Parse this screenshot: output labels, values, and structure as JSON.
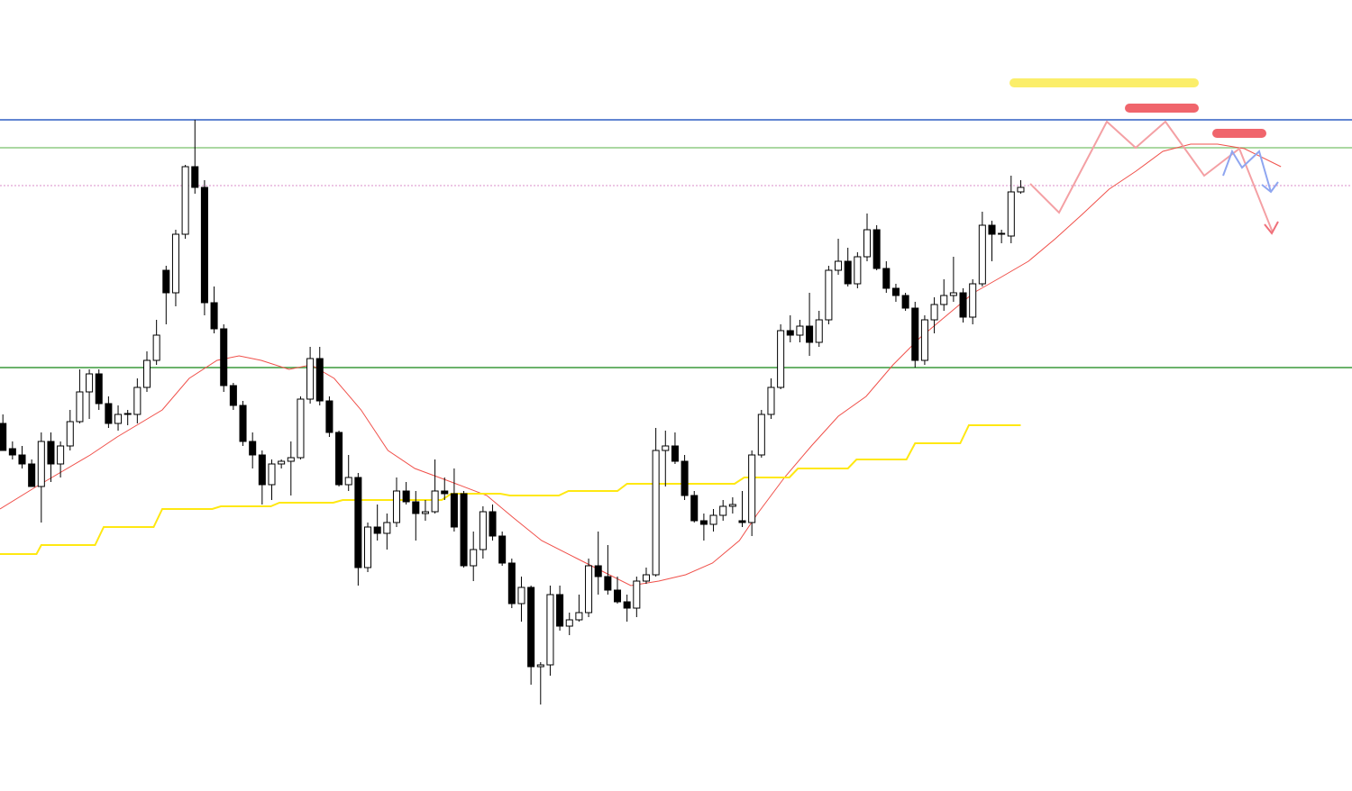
{
  "chart_data": {
    "type": "candlestick",
    "x": [
      0,
      1,
      2,
      3,
      4,
      5,
      6,
      7,
      8,
      9,
      10,
      11,
      12,
      13,
      14,
      15,
      16,
      17,
      18,
      19,
      20,
      21,
      22,
      23,
      24,
      25,
      26,
      27,
      28,
      29,
      30,
      31,
      32,
      33,
      34,
      35,
      36,
      37,
      38,
      39,
      40,
      41,
      42,
      43,
      44,
      45,
      46,
      47,
      48,
      49,
      50,
      51,
      52,
      53,
      54,
      55,
      56,
      57,
      58,
      59,
      60,
      61,
      62,
      63,
      64,
      65,
      66,
      67,
      68,
      69,
      70,
      71,
      72,
      73,
      74,
      75,
      76,
      77,
      78,
      79,
      80,
      81,
      82,
      83,
      84,
      85,
      86,
      87,
      88,
      89,
      90,
      91,
      92,
      93,
      94,
      95,
      96,
      97,
      98,
      99,
      100,
      101,
      102,
      103,
      104,
      105,
      106
    ],
    "open": [
      530,
      502,
      495,
      485,
      460,
      510,
      485,
      505,
      532,
      565,
      585,
      552,
      530,
      540,
      540,
      570,
      600,
      700,
      675,
      740,
      815,
      792,
      664,
      635,
      572,
      550,
      510,
      495,
      462,
      485,
      488,
      492,
      557,
      602,
      555,
      520,
      462,
      470,
      370,
      415,
      408,
      420,
      455,
      443,
      430,
      432,
      455,
      452,
      452,
      372,
      390,
      432,
      405,
      375,
      330,
      348,
      260,
      262,
      340,
      305,
      312,
      320,
      372,
      360,
      345,
      332,
      325,
      355,
      362,
      500,
      505,
      488,
      450,
      422,
      418,
      428,
      438,
      422,
      420,
      495,
      540,
      570,
      633,
      628,
      638,
      620,
      645,
      700,
      710,
      685,
      715,
      745,
      702,
      680,
      672,
      658,
      600,
      645,
      662,
      672,
      675,
      648,
      685,
      750,
      740,
      738,
      787
    ],
    "high": [
      540,
      510,
      505,
      490,
      520,
      520,
      510,
      545,
      590,
      590,
      590,
      560,
      550,
      545,
      580,
      610,
      645,
      705,
      745,
      817,
      867,
      800,
      682,
      640,
      575,
      555,
      520,
      500,
      490,
      490,
      510,
      560,
      615,
      615,
      560,
      522,
      495,
      475,
      420,
      440,
      430,
      470,
      465,
      455,
      445,
      490,
      470,
      480,
      455,
      410,
      438,
      440,
      410,
      380,
      360,
      350,
      265,
      350,
      350,
      320,
      340,
      380,
      410,
      395,
      360,
      340,
      360,
      370,
      525,
      522,
      520,
      495,
      455,
      430,
      435,
      445,
      448,
      455,
      500,
      545,
      580,
      640,
      650,
      645,
      675,
      655,
      705,
      735,
      725,
      720,
      763,
      750,
      710,
      685,
      675,
      665,
      650,
      670,
      690,
      715,
      680,
      690,
      765,
      755,
      745,
      805,
      800
    ],
    "low": [
      500,
      490,
      480,
      460,
      420,
      465,
      470,
      500,
      530,
      535,
      545,
      525,
      522,
      528,
      530,
      565,
      595,
      640,
      660,
      735,
      785,
      650,
      630,
      565,
      545,
      505,
      480,
      440,
      445,
      480,
      450,
      490,
      552,
      550,
      515,
      460,
      455,
      350,
      365,
      400,
      390,
      415,
      440,
      400,
      422,
      430,
      445,
      410,
      370,
      355,
      380,
      400,
      372,
      325,
      310,
      240,
      218,
      250,
      300,
      295,
      310,
      315,
      340,
      340,
      330,
      310,
      315,
      352,
      360,
      460,
      485,
      445,
      420,
      400,
      410,
      422,
      430,
      415,
      405,
      492,
      535,
      568,
      620,
      620,
      605,
      615,
      640,
      695,
      682,
      680,
      710,
      700,
      675,
      665,
      655,
      592,
      595,
      630,
      655,
      665,
      642,
      640,
      682,
      710,
      730,
      730,
      785
    ],
    "close": [
      500,
      495,
      485,
      460,
      510,
      485,
      505,
      532,
      565,
      585,
      552,
      530,
      540,
      541,
      570,
      600,
      628,
      675,
      740,
      815,
      792,
      664,
      635,
      572,
      550,
      510,
      495,
      462,
      485,
      488,
      492,
      557,
      602,
      555,
      520,
      462,
      470,
      370,
      415,
      408,
      420,
      455,
      443,
      430,
      432,
      455,
      452,
      415,
      372,
      390,
      432,
      405,
      375,
      330,
      348,
      260,
      262,
      340,
      305,
      312,
      320,
      372,
      360,
      345,
      332,
      325,
      355,
      362,
      500,
      505,
      488,
      450,
      422,
      418,
      428,
      438,
      440,
      420,
      495,
      540,
      570,
      633,
      628,
      638,
      620,
      645,
      700,
      710,
      685,
      715,
      745,
      702,
      680,
      672,
      658,
      600,
      645,
      662,
      672,
      675,
      648,
      685,
      750,
      740,
      741,
      787,
      792
    ],
    "bull_color": "#ffffff",
    "bear_color": "#000000",
    "xlim": [
      -0.3,
      140.5
    ],
    "ylim": [
      122,
      1000
    ],
    "overlays": [
      {
        "color": "#f0504a",
        "x": [
          -0.3,
          3.5,
          9.1,
          11.9,
          16.6,
          19.4,
          22.3,
          24.6,
          26.9,
          29.8,
          32.1,
          34.5,
          37.3,
          40.1,
          42.9,
          46.7,
          50.4,
          53.2,
          56.1,
          59.8,
          62.6,
          65.4,
          68.3,
          71.1,
          73.9,
          76.7,
          78.6,
          81.4,
          84.2,
          87.0,
          89.9,
          92.7,
          95.5,
          98.3,
          101.1,
          103.9,
          106.8,
          109.6,
          112.4,
          115.2,
          118.0,
          120.8,
          123.7,
          126.5,
          129.3,
          133.1
        ],
        "values": [
          435,
          460,
          495,
          515,
          545,
          580,
          600,
          605,
          600,
          590,
          595,
          580,
          545,
          500,
          480,
          465,
          450,
          425,
          400,
          380,
          365,
          350,
          355,
          362,
          375,
          400,
          430,
          470,
          505,
          538,
          560,
          595,
          625,
          650,
          675,
          692,
          710,
          735,
          762,
          790,
          810,
          832,
          840,
          840,
          835,
          815
        ]
      },
      {
        "color": "#ffe812",
        "x": [
          -0.3,
          3.5,
          4.0,
          9.6,
          10.5,
          15.7,
          16.6,
          21.8,
          22.7,
          27.9,
          28.8,
          34.4,
          35.4,
          45.7,
          46.7,
          51.8,
          52.8,
          57.9,
          58.9,
          64.0,
          65.0,
          76.2,
          77.2,
          81.9,
          82.8,
          88.0,
          88.9,
          94.1,
          95.0,
          99.7,
          100.6,
          106.0
        ],
        "values": [
          385,
          385,
          395,
          395,
          415,
          415,
          435,
          435,
          438,
          438,
          442,
          442,
          445,
          445,
          452,
          452,
          450,
          450,
          455,
          455,
          463,
          463,
          470,
          470,
          480,
          480,
          490,
          490,
          508,
          508,
          528,
          528
        ]
      }
    ],
    "levels": [
      {
        "value": 867,
        "color": "#2f5fc4",
        "dash": false
      },
      {
        "value": 836,
        "color": "#8fcb84",
        "dash": false
      },
      {
        "value": 794,
        "color": "#d88cc8",
        "dash": true
      },
      {
        "value": 592,
        "color": "#3a9a3a",
        "dash": false
      }
    ]
  }
}
